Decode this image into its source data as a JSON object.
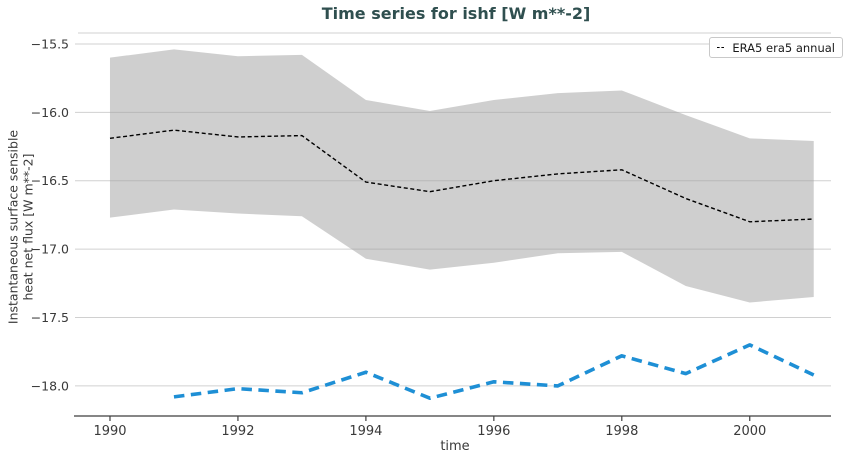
{
  "title": "Time series for ishf [W m**-2]",
  "axes": {
    "xlabel": "time",
    "ylabel_line1": "Instantaneous surface sensible",
    "ylabel_line2": "heat net flux [W m**-2]"
  },
  "legend": {
    "position": "upper right",
    "entries": [
      {
        "label": "ERA5 era5 annual",
        "line_style": "dashed",
        "color": "#000000"
      }
    ]
  },
  "colors": {
    "title": "#2f4f4f",
    "grid": "#d0d0d0",
    "spine": "#3f3f3f",
    "tick_label": "#3a3a3a",
    "band": "rgba(160,160,160,0.5)",
    "era5_annual": "#000000",
    "blue_series": "#1e8fd5"
  },
  "chart_data": {
    "type": "line",
    "title": "Time series for ishf [W m**-2]",
    "xlabel": "time",
    "ylabel": "Instantaneous surface sensible heat net flux [W m**-2]",
    "xlim": [
      1989.5,
      2001.27
    ],
    "ylim": [
      -18.22,
      -15.42
    ],
    "xticks": [
      1990,
      1992,
      1994,
      1996,
      1998,
      2000
    ],
    "yticks": [
      -15.5,
      -16.0,
      -16.5,
      -17.0,
      -17.5,
      -18.0
    ],
    "grid": "horizontal",
    "legend_position": "upper right",
    "series": [
      {
        "id": "era5_annual",
        "legend_label": "ERA5 era5 annual",
        "type": "line",
        "color": "#000000",
        "dash": "4 2.6",
        "stroke_width": 1.4,
        "x": [
          1990,
          1991,
          1992,
          1993,
          1994,
          1995,
          1996,
          1997,
          1998,
          1999,
          2000,
          2001
        ],
        "values": [
          -16.19,
          -16.13,
          -16.18,
          -16.17,
          -16.51,
          -16.58,
          -16.5,
          -16.45,
          -16.42,
          -16.63,
          -16.8,
          -16.78
        ]
      },
      {
        "id": "blue_dashed",
        "legend_label": null,
        "type": "line",
        "color": "#1e8fd5",
        "dash": "10.5 6.5",
        "stroke_width": 3.6,
        "x": [
          1991,
          1992,
          1993,
          1994,
          1995,
          1996,
          1997,
          1998,
          1999,
          2000,
          2001
        ],
        "values": [
          -18.08,
          -18.02,
          -18.05,
          -17.9,
          -18.09,
          -17.97,
          -18.0,
          -17.78,
          -17.91,
          -17.7,
          -17.92
        ]
      },
      {
        "id": "uncertainty_band",
        "type": "band",
        "color": "rgba(160,160,160,0.5)",
        "x": [
          1990,
          1991,
          1992,
          1993,
          1994,
          1995,
          1996,
          1997,
          1998,
          1999,
          2000,
          2001
        ],
        "top": [
          -15.6,
          -15.54,
          -15.59,
          -15.58,
          -15.91,
          -15.99,
          -15.91,
          -15.86,
          -15.84,
          -16.02,
          -16.19,
          -16.21
        ],
        "bottom": [
          -16.77,
          -16.71,
          -16.74,
          -16.76,
          -17.07,
          -17.15,
          -17.1,
          -17.03,
          -17.02,
          -17.27,
          -17.39,
          -17.35
        ]
      }
    ]
  }
}
